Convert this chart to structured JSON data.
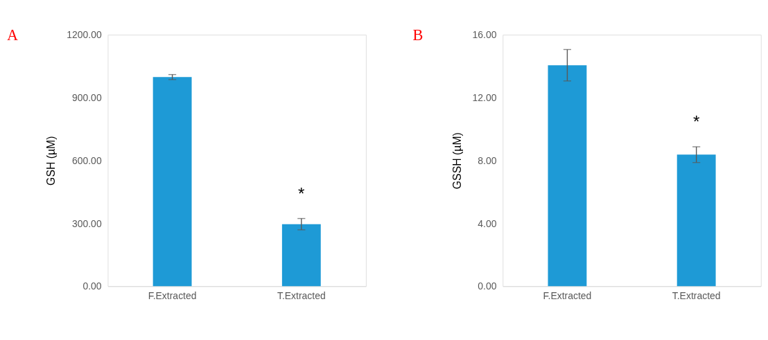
{
  "chart_data": [
    {
      "type": "bar",
      "title": "A",
      "ylabel": "GSH (µM)",
      "categories": [
        "F.Extracted",
        "T.Extracted"
      ],
      "values": [
        998,
        296
      ],
      "errors": [
        12,
        27
      ],
      "color": "#1e9ad6",
      "ylim": [
        0,
        1200
      ],
      "yticks": [
        {
          "value": 0,
          "label": "0.00"
        },
        {
          "value": 300,
          "label": "300.00"
        },
        {
          "value": 600,
          "label": "600.00"
        },
        {
          "value": 900,
          "label": "900.00"
        },
        {
          "value": 1200,
          "label": "1200.00"
        }
      ],
      "grid": false,
      "annotations": [
        "*"
      ]
    },
    {
      "type": "bar",
      "title": "B",
      "ylabel": "GSSH (µM)",
      "categories": [
        "F.Extracted",
        "T.Extracted"
      ],
      "values": [
        14.06,
        8.37
      ],
      "errors": [
        1.0,
        0.5
      ],
      "color": "#1e9ad6",
      "ylim": [
        0,
        16
      ],
      "yticks": [
        {
          "value": 0,
          "label": "0.00"
        },
        {
          "value": 4,
          "label": "4.00"
        },
        {
          "value": 8,
          "label": "8.00"
        },
        {
          "value": 12,
          "label": "12.00"
        },
        {
          "value": 16,
          "label": "16.00"
        }
      ],
      "grid": false,
      "annotations": [
        "*"
      ]
    }
  ]
}
